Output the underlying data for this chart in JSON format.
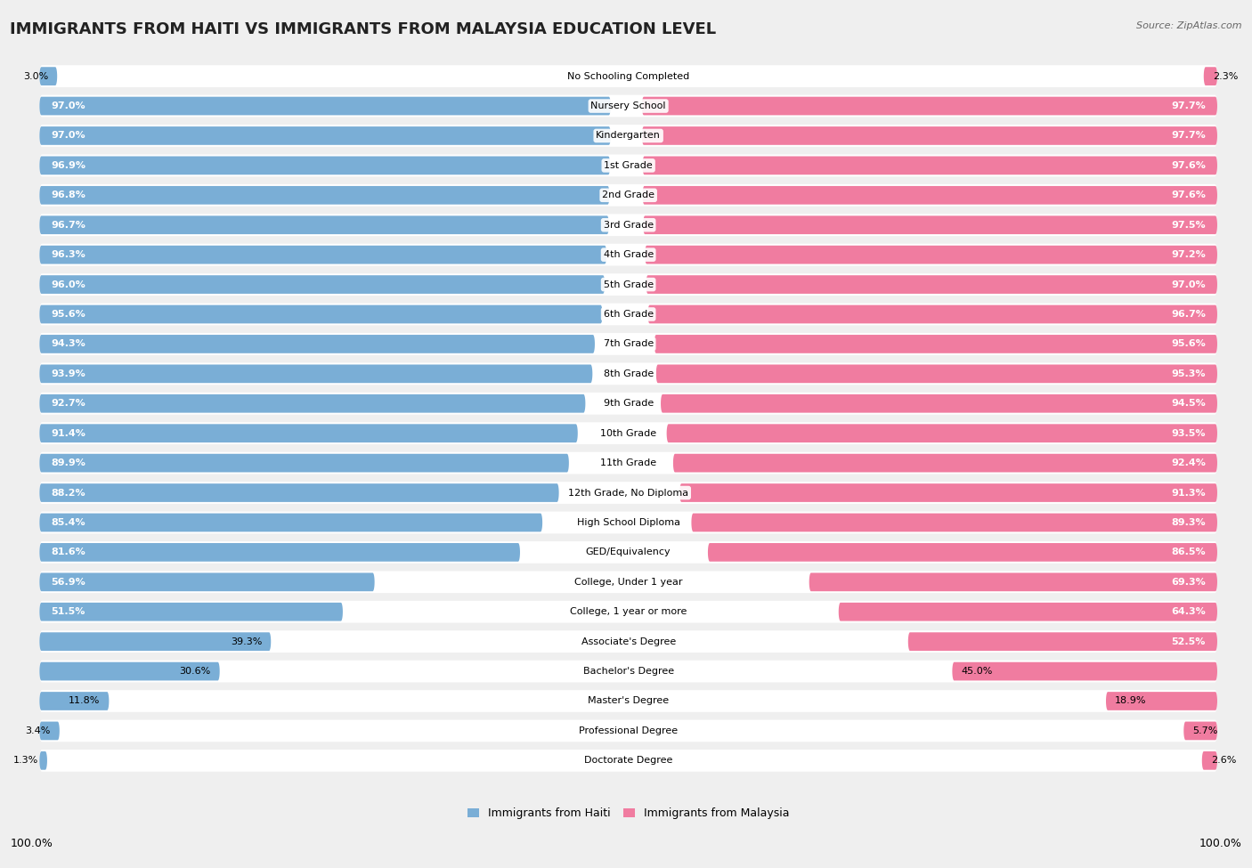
{
  "title": "IMMIGRANTS FROM HAITI VS IMMIGRANTS FROM MALAYSIA EDUCATION LEVEL",
  "source": "Source: ZipAtlas.com",
  "categories": [
    "No Schooling Completed",
    "Nursery School",
    "Kindergarten",
    "1st Grade",
    "2nd Grade",
    "3rd Grade",
    "4th Grade",
    "5th Grade",
    "6th Grade",
    "7th Grade",
    "8th Grade",
    "9th Grade",
    "10th Grade",
    "11th Grade",
    "12th Grade, No Diploma",
    "High School Diploma",
    "GED/Equivalency",
    "College, Under 1 year",
    "College, 1 year or more",
    "Associate's Degree",
    "Bachelor's Degree",
    "Master's Degree",
    "Professional Degree",
    "Doctorate Degree"
  ],
  "haiti_values": [
    3.0,
    97.0,
    97.0,
    96.9,
    96.8,
    96.7,
    96.3,
    96.0,
    95.6,
    94.3,
    93.9,
    92.7,
    91.4,
    89.9,
    88.2,
    85.4,
    81.6,
    56.9,
    51.5,
    39.3,
    30.6,
    11.8,
    3.4,
    1.3
  ],
  "malaysia_values": [
    2.3,
    97.7,
    97.7,
    97.6,
    97.6,
    97.5,
    97.2,
    97.0,
    96.7,
    95.6,
    95.3,
    94.5,
    93.5,
    92.4,
    91.3,
    89.3,
    86.5,
    69.3,
    64.3,
    52.5,
    45.0,
    18.9,
    5.7,
    2.6
  ],
  "haiti_color": "#7aaed6",
  "malaysia_color": "#f07ca0",
  "background_color": "#efefef",
  "bar_bg_color": "#e0e0e0",
  "legend_haiti": "Immigrants from Haiti",
  "legend_malaysia": "Immigrants from Malaysia",
  "axis_label_left": "100.0%",
  "axis_label_right": "100.0%",
  "title_fontsize": 13,
  "value_fontsize": 8,
  "category_fontsize": 8
}
